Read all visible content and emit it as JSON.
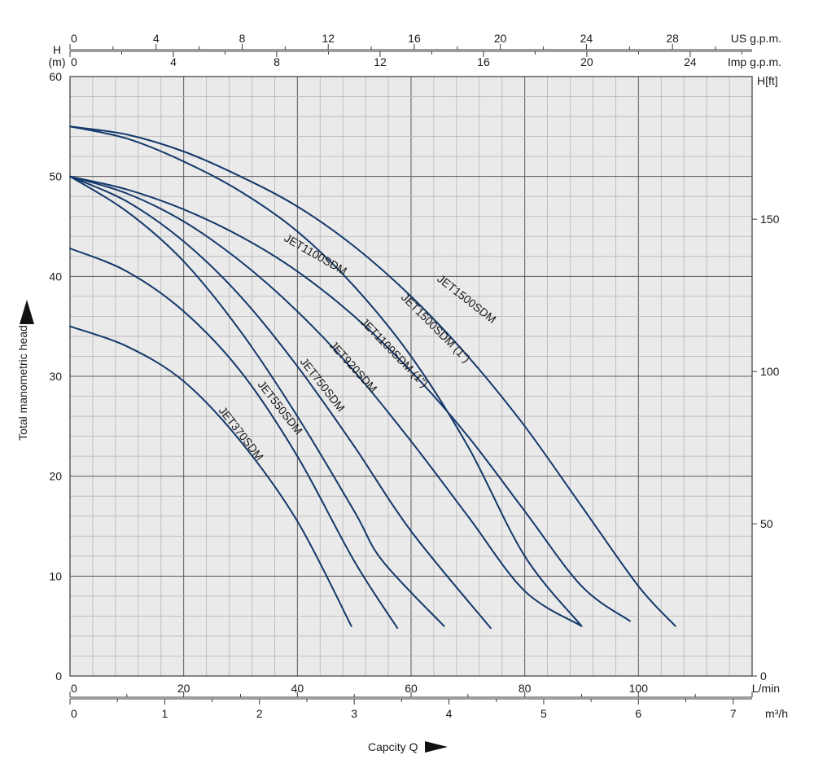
{
  "chart_data": {
    "type": "line",
    "axes": {
      "left_label": "Total manometric head",
      "left_unit_h": "H",
      "left_unit_m": "(m)",
      "left_range": [
        0,
        60
      ],
      "left_ticks": [
        "0",
        "10",
        "20",
        "30",
        "40",
        "50",
        "60"
      ],
      "right_label": "H[ft]",
      "right_ticks": [
        "0",
        "50",
        "100",
        "150"
      ],
      "bottom1_label": "L/min",
      "bottom1_range": [
        0,
        120
      ],
      "bottom1_ticks": [
        "0",
        "20",
        "40",
        "60",
        "80",
        "100"
      ],
      "bottom2_label": "m³/h",
      "bottom2_ticks": [
        "0",
        "1",
        "2",
        "3",
        "4",
        "5",
        "6",
        "7"
      ],
      "top1_label": "US g.p.m.",
      "top1_ticks": [
        "0",
        "4",
        "8",
        "12",
        "16",
        "20",
        "24",
        "28"
      ],
      "top2_label": "Imp g.p.m.",
      "top2_ticks": [
        "0",
        "4",
        "8",
        "12",
        "16",
        "20",
        "24"
      ],
      "xlabel": "Capcity Q"
    },
    "series": [
      {
        "name": "JET370SDM",
        "points": [
          [
            0,
            35
          ],
          [
            10,
            33
          ],
          [
            20,
            29.5
          ],
          [
            30,
            23.5
          ],
          [
            40,
            15.5
          ],
          [
            49.5,
            5
          ]
        ]
      },
      {
        "name": "JET550SDM",
        "points": [
          [
            0,
            42.8
          ],
          [
            10,
            40.5
          ],
          [
            20,
            36.5
          ],
          [
            30,
            30.5
          ],
          [
            40,
            22
          ],
          [
            50,
            11.5
          ],
          [
            57.6,
            4.8
          ]
        ]
      },
      {
        "name": "JET750SDM",
        "points": [
          [
            0,
            50
          ],
          [
            10,
            46.5
          ],
          [
            20,
            41.5
          ],
          [
            30,
            34.5
          ],
          [
            40,
            26
          ],
          [
            50,
            16.5
          ],
          [
            55,
            11.5
          ],
          [
            65.8,
            5
          ]
        ]
      },
      {
        "name": "JET920SDM",
        "points": [
          [
            0,
            50
          ],
          [
            10,
            47.5
          ],
          [
            20,
            43.5
          ],
          [
            30,
            38
          ],
          [
            40,
            31
          ],
          [
            50,
            23
          ],
          [
            60,
            14.5
          ],
          [
            74,
            4.8
          ]
        ]
      },
      {
        "name": "JET1100SDM (1\")",
        "points": [
          [
            0,
            50
          ],
          [
            10,
            48.3
          ],
          [
            20,
            45.5
          ],
          [
            30,
            41.5
          ],
          [
            40,
            36.5
          ],
          [
            50,
            30.5
          ],
          [
            60,
            23.5
          ],
          [
            70,
            16
          ],
          [
            80,
            8.5
          ],
          [
            90,
            5
          ]
        ]
      },
      {
        "name": "JET1100SDM",
        "points": [
          [
            0,
            50
          ],
          [
            10,
            48.7
          ],
          [
            20,
            46.7
          ],
          [
            30,
            44
          ],
          [
            40,
            40.5
          ],
          [
            50,
            36
          ],
          [
            60,
            30.5
          ],
          [
            70,
            24
          ],
          [
            80,
            16.5
          ],
          [
            90,
            9
          ],
          [
            98.5,
            5.5
          ]
        ]
      },
      {
        "name": "JET1500SDM (1\")",
        "points": [
          [
            0,
            55
          ],
          [
            10,
            53.8
          ],
          [
            20,
            51.5
          ],
          [
            30,
            48.5
          ],
          [
            40,
            44.5
          ],
          [
            50,
            39
          ],
          [
            60,
            32
          ],
          [
            70,
            23
          ],
          [
            80,
            12
          ],
          [
            90,
            5
          ]
        ]
      },
      {
        "name": "JET1500SDM",
        "points": [
          [
            0,
            55
          ],
          [
            10,
            54.2
          ],
          [
            20,
            52.5
          ],
          [
            30,
            50
          ],
          [
            40,
            47
          ],
          [
            50,
            43
          ],
          [
            60,
            38
          ],
          [
            70,
            32
          ],
          [
            80,
            25
          ],
          [
            90,
            17
          ],
          [
            100,
            9
          ],
          [
            106.5,
            5
          ]
        ]
      }
    ]
  }
}
